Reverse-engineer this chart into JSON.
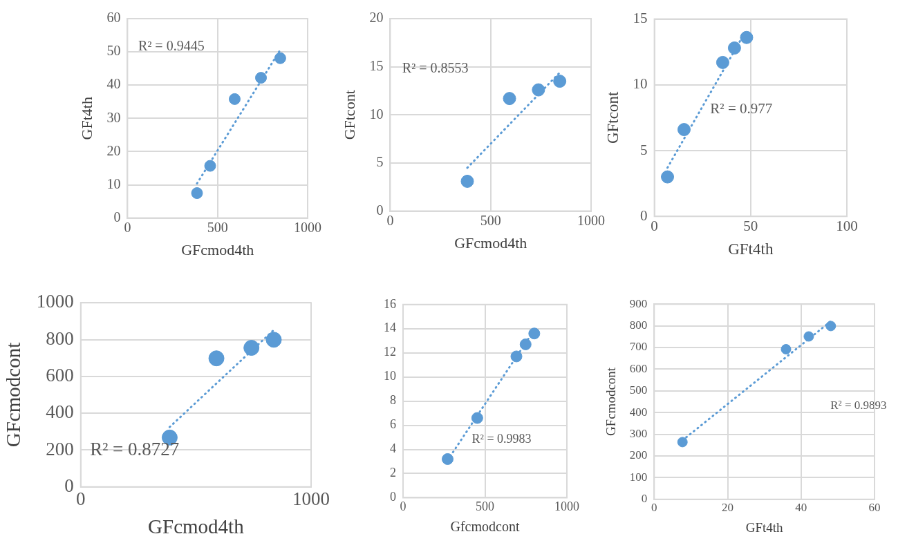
{
  "chart_data": [
    {
      "type": "scatter",
      "xlabel": "GFcmod4th",
      "ylabel": "GFt4th",
      "xlim": [
        0,
        1000
      ],
      "xticks": [
        0,
        500,
        1000
      ],
      "ylim": [
        0,
        60
      ],
      "yticks": [
        0,
        10,
        20,
        30,
        40,
        50,
        60
      ],
      "grid": true,
      "annotations": [
        "R² = 0.9445"
      ],
      "series": [
        {
          "type": "scatter",
          "marker": "circle",
          "color": "#5b9bd5",
          "x": [
            386,
            459,
            595,
            741,
            848
          ],
          "values": [
            7.5,
            15.7,
            35.8,
            42.2,
            48.1
          ]
        },
        {
          "type": "line",
          "marker": "none",
          "color": "#5b9bd5",
          "line_style": "dotted",
          "x": [
            386,
            848
          ],
          "values": [
            10.4,
            50.6
          ]
        }
      ]
    },
    {
      "type": "scatter",
      "xlabel": "GFcmod4th",
      "ylabel": "GFtcont",
      "xlim": [
        0,
        1000
      ],
      "xticks": [
        0,
        500,
        1000
      ],
      "ylim": [
        0,
        20
      ],
      "yticks": [
        0,
        5,
        10,
        15,
        20
      ],
      "grid": true,
      "annotations": [
        "R² = 0.8553"
      ],
      "series": [
        {
          "type": "scatter",
          "marker": "circle",
          "color": "#5b9bd5",
          "x": [
            384,
            594,
            738,
            844
          ],
          "values": [
            3.1,
            11.7,
            12.6,
            13.5
          ]
        },
        {
          "type": "line",
          "marker": "none",
          "color": "#5b9bd5",
          "line_style": "dotted",
          "x": [
            384,
            844
          ],
          "values": [
            4.5,
            14.4
          ]
        }
      ]
    },
    {
      "type": "scatter",
      "xlabel": "GFt4th",
      "ylabel": "GFtcont",
      "xlim": [
        0,
        100
      ],
      "xticks": [
        0,
        50,
        100
      ],
      "ylim": [
        0,
        15
      ],
      "yticks": [
        0,
        5,
        10,
        15
      ],
      "grid": true,
      "annotations": [
        "R² = 0.977"
      ],
      "series": [
        {
          "type": "scatter",
          "marker": "circle",
          "color": "#5b9bd5",
          "x": [
            6.8,
            15.4,
            35.5,
            41.6,
            47.9
          ],
          "values": [
            3.0,
            6.6,
            11.7,
            12.8,
            13.6
          ]
        },
        {
          "type": "line",
          "marker": "none",
          "color": "#5b9bd5",
          "line_style": "dotted",
          "x": [
            6.8,
            47.9
          ],
          "values": [
            3.7,
            14.2
          ]
        }
      ]
    },
    {
      "type": "scatter",
      "xlabel": "GFcmod4th",
      "ylabel": "GFcmodcont",
      "xlim": [
        0,
        1000
      ],
      "xticks": [
        0,
        1000
      ],
      "ylim": [
        0,
        1000
      ],
      "yticks": [
        0,
        200,
        400,
        600,
        800,
        1000
      ],
      "grid": "y",
      "annotations": [
        "R² = 0.8727"
      ],
      "series": [
        {
          "type": "scatter",
          "marker": "circle",
          "color": "#5b9bd5",
          "x": [
            386,
            589,
            741,
            838
          ],
          "values": [
            268,
            698,
            755,
            799
          ]
        },
        {
          "type": "line",
          "marker": "none",
          "color": "#5b9bd5",
          "line_style": "dotted",
          "x": [
            386,
            838
          ],
          "values": [
            325,
            852
          ]
        }
      ]
    },
    {
      "type": "scatter",
      "xlabel": "Gfcmodcont",
      "xlim": [
        0,
        1000
      ],
      "xticks": [
        0,
        500,
        1000
      ],
      "ylim": [
        0,
        16
      ],
      "yticks": [
        0,
        2,
        4,
        6,
        8,
        10,
        12,
        14,
        16
      ],
      "grid": true,
      "annotations": [
        "R² = 0.9983"
      ],
      "series": [
        {
          "type": "scatter",
          "marker": "circle",
          "color": "#5b9bd5",
          "x": [
            272,
            453,
            692,
            748,
            801
          ],
          "values": [
            3.2,
            6.6,
            11.7,
            12.7,
            13.6
          ]
        },
        {
          "type": "line",
          "marker": "none",
          "color": "#5b9bd5",
          "line_style": "dotted",
          "x": [
            272,
            801
          ],
          "values": [
            3.1,
            13.9
          ]
        }
      ]
    },
    {
      "type": "scatter",
      "xlabel": "GFt4th",
      "ylabel": "GFcmodcont",
      "xlim": [
        0,
        60
      ],
      "xticks": [
        0,
        20,
        40,
        60
      ],
      "ylim": [
        0,
        900
      ],
      "yticks": [
        0,
        100,
        200,
        300,
        400,
        500,
        600,
        700,
        800,
        900
      ],
      "grid": true,
      "annotations": [
        "R² = 0.9893"
      ],
      "series": [
        {
          "type": "scatter",
          "marker": "circle",
          "color": "#5b9bd5",
          "x": [
            7.7,
            35.9,
            42.1,
            48.1
          ],
          "values": [
            264,
            692,
            751,
            799
          ]
        },
        {
          "type": "line",
          "marker": "none",
          "color": "#5b9bd5",
          "line_style": "dotted",
          "x": [
            7.7,
            48.1
          ],
          "values": [
            272,
            821
          ]
        }
      ]
    }
  ]
}
